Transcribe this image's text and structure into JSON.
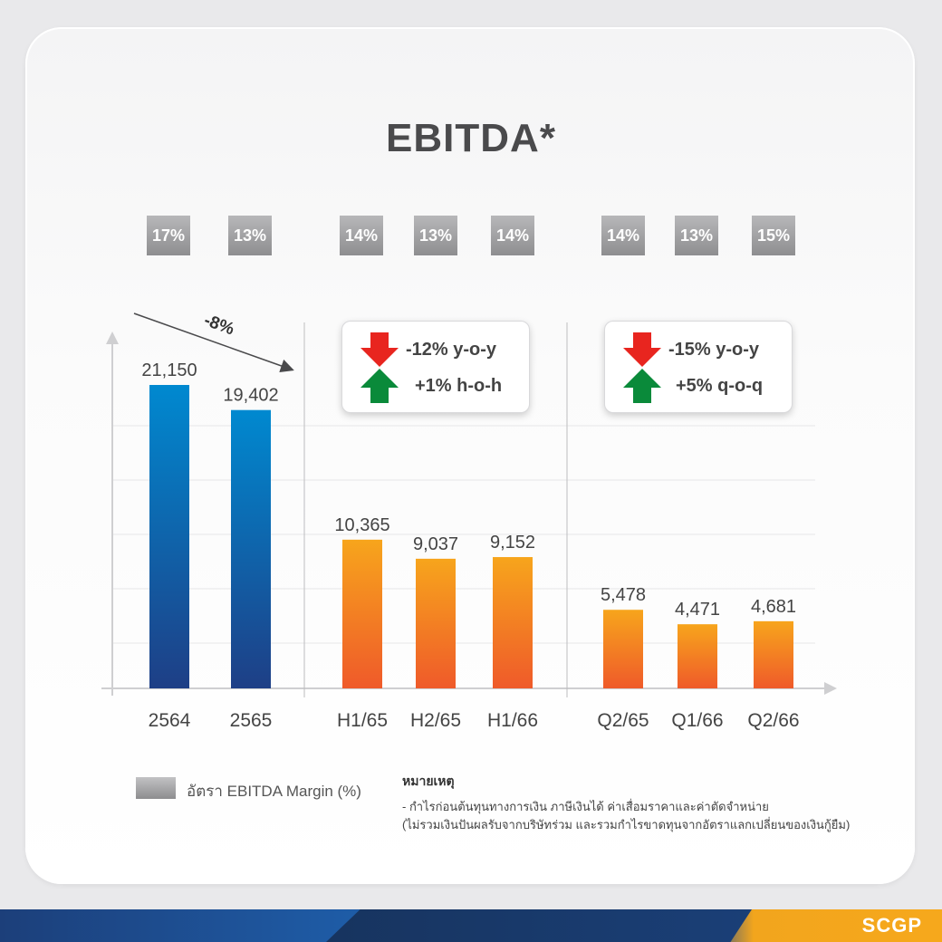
{
  "title": "EBITDA*",
  "margins": [
    "17%",
    "13%",
    "14%",
    "13%",
    "14%",
    "14%",
    "13%",
    "15%"
  ],
  "annual_change": "-8%",
  "half_year_box": {
    "down": "-12% y-o-y",
    "up": "+1% h-o-h"
  },
  "quarter_box": {
    "down": "-15% y-o-y",
    "up": "+5% q-o-q"
  },
  "legend": {
    "label": "อัตรา EBITDA Margin (%)"
  },
  "note": {
    "title": "หมายเหตุ",
    "line1": "- กำไรก่อนต้นทุนทางการเงิน ภาษีเงินได้ ค่าเสื่อมราคาและค่าตัดจำหน่าย",
    "line2": "(ไม่รวมเงินปันผลรับจากบริษัทร่วม และรวมกำไรขาดทุนจากอัตราแลกเปลี่ยนของเงินกู้ยืม)"
  },
  "brand": "SCGP",
  "colors": {
    "annual_top": "#0089d0",
    "annual_bottom": "#1e3f86",
    "period_top": "#f7a51c",
    "period_bottom": "#ef5a2a",
    "arrow_down": "#e8251f",
    "arrow_up": "#0a8a3a"
  },
  "chart_data": {
    "type": "bar",
    "title": "EBITDA*",
    "categories": [
      "2564",
      "2565",
      "H1/65",
      "H2/65",
      "H1/66",
      "Q2/65",
      "Q1/66",
      "Q2/66"
    ],
    "values": [
      21150,
      19402,
      10365,
      9037,
      9152,
      5478,
      4471,
      4681
    ],
    "value_labels": [
      "21,150",
      "19,402",
      "10,365",
      "9,037",
      "9,152",
      "5,478",
      "4,471",
      "4,681"
    ],
    "margin_labels": [
      "17%",
      "13%",
      "14%",
      "13%",
      "14%",
      "14%",
      "13%",
      "15%"
    ],
    "groups": [
      "annual",
      "annual",
      "half",
      "half",
      "half",
      "quarter",
      "quarter",
      "quarter"
    ],
    "ylim": [
      0,
      21150
    ],
    "grid": true
  }
}
